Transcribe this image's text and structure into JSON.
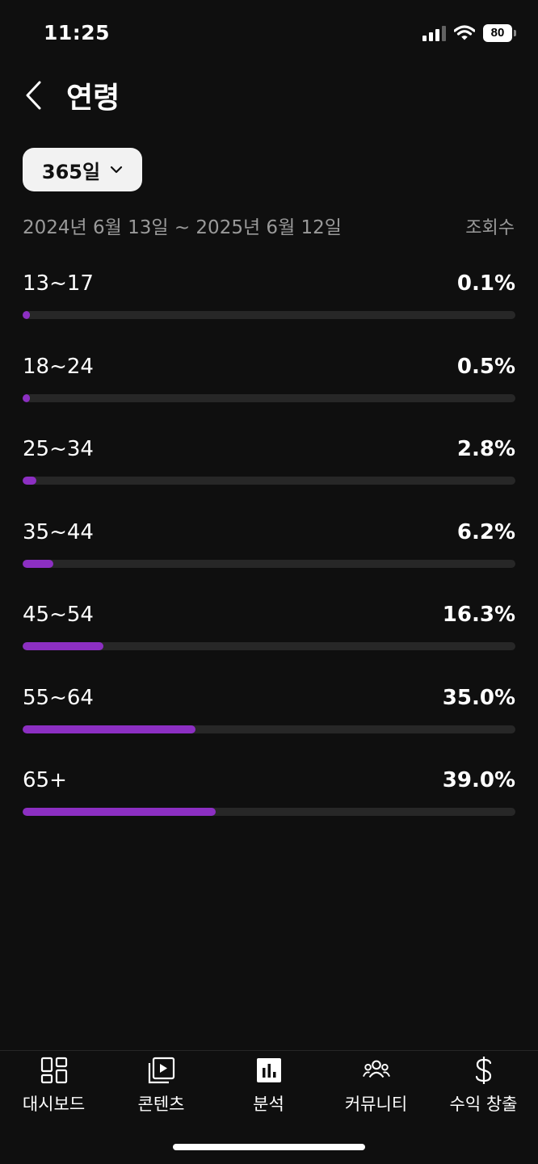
{
  "status_bar": {
    "time": "11:25",
    "battery": "80",
    "icons": [
      "signal-icon",
      "wifi-icon",
      "battery-icon"
    ]
  },
  "header": {
    "back_icon": "chevron-left-icon",
    "title": "연령"
  },
  "filter": {
    "period": "365일",
    "dropdown_icon": "chevron-down-icon",
    "date_range": "2024년 6월 13일 ~ 2025년 6월 12일",
    "metric": "조회수"
  },
  "accent_color": "#8c2fc2",
  "age_groups": [
    {
      "label": "13~17",
      "value": "0.1%",
      "percent": 0.1
    },
    {
      "label": "18~24",
      "value": "0.5%",
      "percent": 0.5
    },
    {
      "label": "25~34",
      "value": "2.8%",
      "percent": 2.8
    },
    {
      "label": "35~44",
      "value": "6.2%",
      "percent": 6.2
    },
    {
      "label": "45~54",
      "value": "16.3%",
      "percent": 16.3
    },
    {
      "label": "55~64",
      "value": "35.0%",
      "percent": 35.0
    },
    {
      "label": "65+",
      "value": "39.0%",
      "percent": 39.0
    }
  ],
  "nav": {
    "items": [
      {
        "label": "대시보드",
        "icon": "dashboard-icon"
      },
      {
        "label": "콘텐츠",
        "icon": "content-icon"
      },
      {
        "label": "분석",
        "icon": "analytics-icon"
      },
      {
        "label": "커뮤니티",
        "icon": "community-icon"
      },
      {
        "label": "수익 창출",
        "icon": "dollar-icon"
      }
    ]
  }
}
